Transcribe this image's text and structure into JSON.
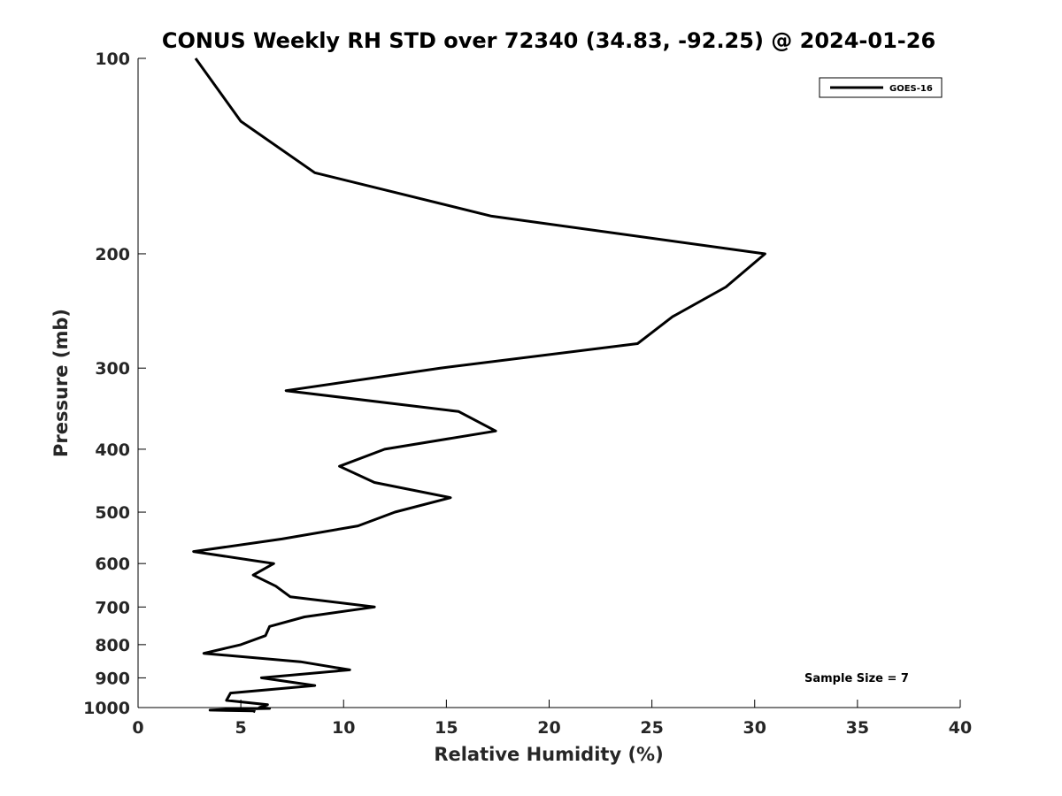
{
  "chart_data": {
    "type": "line",
    "title": "CONUS Weekly RH STD over 72340 (34.83, -92.25) @ 2024-01-26",
    "xlabel": "Relative Humidity (%)",
    "ylabel": "Pressure (mb)",
    "xlim": [
      0,
      40
    ],
    "ylim": [
      100,
      1000
    ],
    "y_scale": "log",
    "y_reversed": true,
    "grid": false,
    "legend_position": "top-right",
    "x_ticks": [
      "0",
      "5",
      "10",
      "15",
      "20",
      "25",
      "30",
      "35",
      "40"
    ],
    "y_ticks": [
      "100",
      "200",
      "300",
      "400",
      "500",
      "600",
      "700",
      "800",
      "900",
      "1000"
    ],
    "annotation": "Sample Size = 7",
    "line_color": "#000000",
    "series": [
      {
        "name": "GOES-16",
        "values": [
          [
            2.8,
            100
          ],
          [
            5.0,
            125
          ],
          [
            8.6,
            150
          ],
          [
            17.2,
            175
          ],
          [
            30.5,
            200
          ],
          [
            28.6,
            225
          ],
          [
            26.0,
            250
          ],
          [
            24.3,
            275
          ],
          [
            14.7,
            300
          ],
          [
            7.2,
            325
          ],
          [
            15.6,
            350
          ],
          [
            17.4,
            375
          ],
          [
            12.0,
            400
          ],
          [
            9.8,
            425
          ],
          [
            11.5,
            450
          ],
          [
            15.2,
            475
          ],
          [
            12.5,
            500
          ],
          [
            10.7,
            525
          ],
          [
            7.0,
            550
          ],
          [
            2.7,
            575
          ],
          [
            6.6,
            600
          ],
          [
            5.6,
            625
          ],
          [
            6.7,
            650
          ],
          [
            7.4,
            675
          ],
          [
            11.5,
            700
          ],
          [
            8.1,
            725
          ],
          [
            6.4,
            750
          ],
          [
            6.2,
            775
          ],
          [
            5.0,
            800
          ],
          [
            3.2,
            825
          ],
          [
            7.9,
            850
          ],
          [
            10.3,
            875
          ],
          [
            6.0,
            900
          ],
          [
            8.6,
            925
          ],
          [
            4.5,
            950
          ],
          [
            4.3,
            975
          ],
          [
            6.3,
            990
          ],
          [
            5.9,
            1000
          ],
          [
            6.4,
            1003
          ],
          [
            4.3,
            1006
          ],
          [
            3.5,
            1009
          ],
          [
            5.6,
            1012
          ],
          [
            5.7,
            1015
          ]
        ]
      }
    ]
  }
}
